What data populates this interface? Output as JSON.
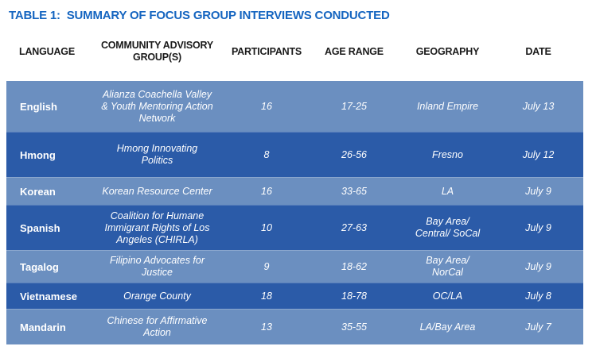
{
  "title": "TABLE 1:  SUMMARY OF FOCUS GROUP INTERVIEWS CONDUCTED",
  "table": {
    "columns": [
      "LANGUAGE",
      "COMMUNITY ADVISORY\nGROUP(S)",
      "PARTICIPANTS",
      "AGE RANGE",
      "GEOGRAPHY",
      "DATE"
    ],
    "rows": [
      {
        "language": "English",
        "group": "Alianza Coachella Valley\n& Youth Mentoring Action\nNetwork",
        "participants": "16",
        "age_range": "17-25",
        "geography": "Inland Empire",
        "date": "July 13"
      },
      {
        "language": "Hmong",
        "group": "Hmong Innovating\nPolitics",
        "participants": "8",
        "age_range": "26-56",
        "geography": "Fresno",
        "date": "July 12"
      },
      {
        "language": "Korean",
        "group": "Korean Resource Center",
        "participants": "16",
        "age_range": "33-65",
        "geography": "LA",
        "date": "July 9"
      },
      {
        "language": "Spanish",
        "group": "Coalition for Humane\nImmigrant Rights of Los\nAngeles (CHIRLA)",
        "participants": "10",
        "age_range": "27-63",
        "geography": "Bay Area/\nCentral/ SoCal",
        "date": "July 9"
      },
      {
        "language": "Tagalog",
        "group": "Filipino Advocates for\nJustice",
        "participants": "9",
        "age_range": "18-62",
        "geography": "Bay Area/\nNorCal",
        "date": "July 9"
      },
      {
        "language": "Vietnamese",
        "group": "Orange County",
        "participants": "18",
        "age_range": "18-78",
        "geography": "OC/LA",
        "date": "July 8"
      },
      {
        "language": "Mandarin",
        "group": "Chinese for Affirmative\nAction",
        "participants": "13",
        "age_range": "35-55",
        "geography": "LA/Bay Area",
        "date": "July 7"
      }
    ]
  },
  "colors": {
    "title": "#1565C0",
    "header_text": "#1A1A1A",
    "row_light": "#6B8FC0",
    "row_dark": "#2B5BA8",
    "cell_text": "#FFFFFF"
  }
}
